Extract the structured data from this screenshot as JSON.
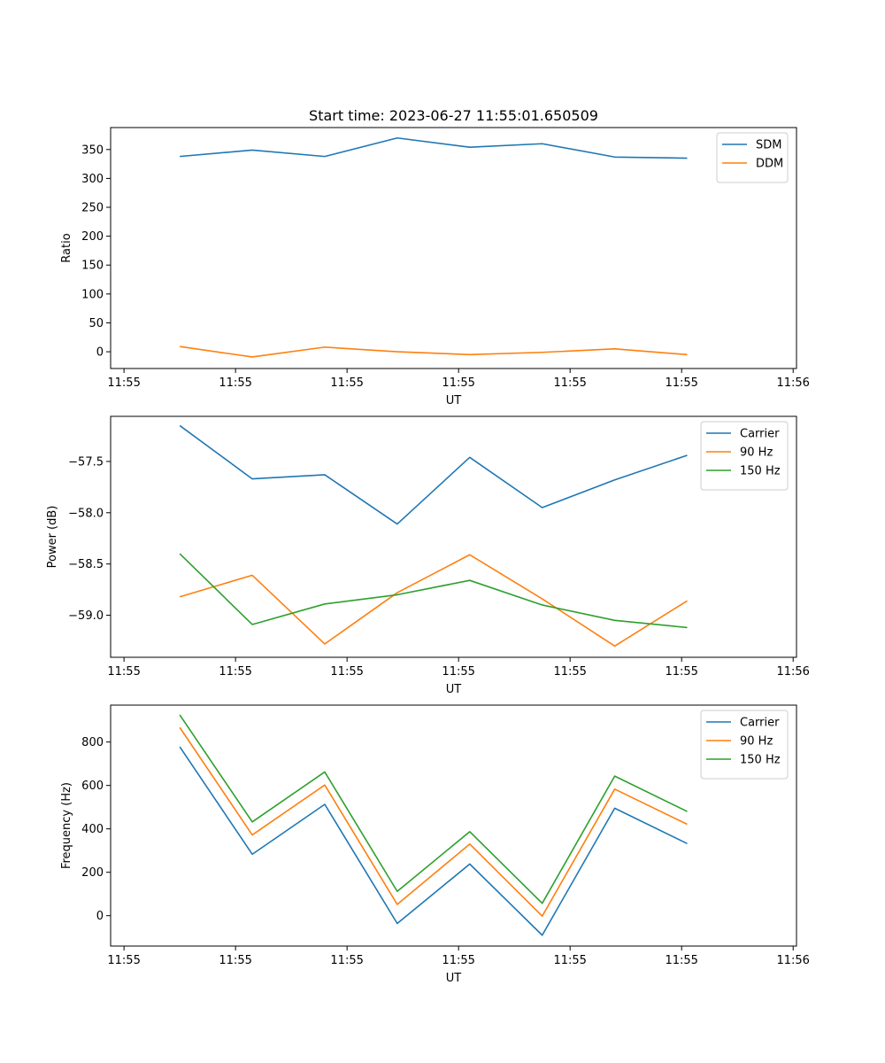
{
  "figure": {
    "title": "Start time: 2023-06-27 11:55:01.650509"
  },
  "chart_data": [
    {
      "type": "line",
      "title": "Start time: 2023-06-27 11:55:01.650509",
      "xlabel": "UT",
      "ylabel": "Ratio",
      "x_ticks": [
        "11:55",
        "11:55",
        "11:55",
        "11:55",
        "11:55",
        "11:55",
        "11:56"
      ],
      "x_tick_positions": [
        0,
        1,
        2,
        3,
        4,
        5,
        6
      ],
      "x_points": [
        0.5,
        1.15,
        1.8,
        2.45,
        3.1,
        3.75,
        4.4,
        5.05
      ],
      "xlim": [
        -0.12,
        6.03
      ],
      "y_ticks": [
        0,
        50,
        100,
        150,
        200,
        250,
        300,
        350
      ],
      "ylim": [
        -29,
        388
      ],
      "legend": "top-right",
      "grid": false,
      "series": [
        {
          "name": "SDM",
          "color": "#1f77b4",
          "values": [
            338,
            349,
            338,
            370,
            354,
            360,
            337,
            335
          ]
        },
        {
          "name": "DDM",
          "color": "#ff7f0e",
          "values": [
            9,
            -9,
            8,
            0,
            -5,
            -1,
            5,
            -5
          ]
        }
      ]
    },
    {
      "type": "line",
      "xlabel": "UT",
      "ylabel": "Power (dB)",
      "x_ticks": [
        "11:55",
        "11:55",
        "11:55",
        "11:55",
        "11:55",
        "11:55",
        "11:56"
      ],
      "x_tick_positions": [
        0,
        1,
        2,
        3,
        4,
        5,
        6
      ],
      "x_points": [
        0.5,
        1.15,
        1.8,
        2.45,
        3.1,
        3.75,
        4.4,
        5.05
      ],
      "xlim": [
        -0.12,
        6.03
      ],
      "y_ticks": [
        -57.5,
        -58.0,
        -58.5,
        -59.0
      ],
      "y_tick_labels": [
        "−57.5",
        "−58.0",
        "−58.5",
        "−59.0"
      ],
      "ylim": [
        -59.41,
        -57.06
      ],
      "legend": "top-right",
      "grid": false,
      "series": [
        {
          "name": "Carrier",
          "color": "#1f77b4",
          "values": [
            -57.15,
            -57.67,
            -57.63,
            -58.11,
            -57.46,
            -57.95,
            -57.68,
            -57.44
          ]
        },
        {
          "name": "90 Hz",
          "color": "#ff7f0e",
          "values": [
            -58.82,
            -58.61,
            -59.28,
            -58.78,
            -58.41,
            -58.84,
            -59.3,
            -58.86
          ]
        },
        {
          "name": "150 Hz",
          "color": "#2ca02c",
          "values": [
            -58.4,
            -59.09,
            -58.89,
            -58.8,
            -58.66,
            -58.9,
            -59.05,
            -59.12
          ]
        }
      ]
    },
    {
      "type": "line",
      "xlabel": "UT",
      "ylabel": "Frequency (Hz)",
      "x_ticks": [
        "11:55",
        "11:55",
        "11:55",
        "11:55",
        "11:55",
        "11:55",
        "11:56"
      ],
      "x_tick_positions": [
        0,
        1,
        2,
        3,
        4,
        5,
        6
      ],
      "x_points": [
        0.5,
        1.15,
        1.8,
        2.45,
        3.1,
        3.75,
        4.4,
        5.05
      ],
      "xlim": [
        -0.12,
        6.03
      ],
      "y_ticks": [
        0,
        200,
        400,
        600,
        800
      ],
      "y_tick_labels": [
        "0",
        "200",
        "400",
        "600",
        "800"
      ],
      "ylim": [
        -140,
        970
      ],
      "legend": "top-right",
      "grid": false,
      "series": [
        {
          "name": "Carrier",
          "color": "#1f77b4",
          "values": [
            778,
            283,
            513,
            -36,
            238,
            -90,
            495,
            332
          ]
        },
        {
          "name": "90 Hz",
          "color": "#ff7f0e",
          "values": [
            867,
            372,
            602,
            52,
            330,
            -2,
            583,
            421
          ]
        },
        {
          "name": "150 Hz",
          "color": "#2ca02c",
          "values": [
            925,
            432,
            662,
            112,
            387,
            57,
            643,
            480
          ]
        }
      ]
    }
  ]
}
